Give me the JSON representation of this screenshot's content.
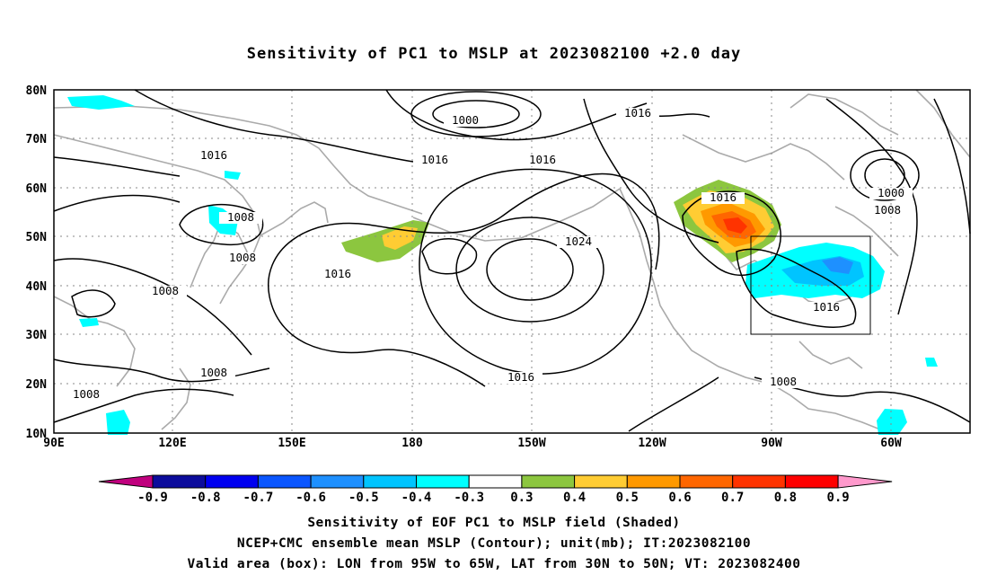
{
  "title": "Sensitivity of PC1 to MSLP at 2023082100 +2.0 day",
  "lat_labels": [
    "80N",
    "70N",
    "60N",
    "50N",
    "40N",
    "30N",
    "20N",
    "10N"
  ],
  "lon_labels": [
    "90E",
    "120E",
    "150E",
    "180",
    "150W",
    "120W",
    "90W",
    "60W"
  ],
  "contour_labels": [
    "1000",
    "1016",
    "1016",
    "1016",
    "1016",
    "1008",
    "1008",
    "1016",
    "1008",
    "1024",
    "1016",
    "1000",
    "1008",
    "1016",
    "1016",
    "1008",
    "1008",
    "1008"
  ],
  "colorbar": {
    "tick_labels": [
      "-0.9",
      "-0.8",
      "-0.7",
      "-0.6",
      "-0.5",
      "-0.4",
      "-0.3",
      "0.3",
      "0.4",
      "0.5",
      "0.6",
      "0.7",
      "0.8",
      "0.9"
    ],
    "colors": [
      "#c0007e",
      "#0c0c9c",
      "#0000f0",
      "#0a56ff",
      "#1e90ff",
      "#00c4ff",
      "#00ffff",
      "#ffffff",
      "#8cc63f",
      "#ffcc33",
      "#ff9900",
      "#ff6600",
      "#ff3300",
      "#ff0000",
      "#ff99cc"
    ]
  },
  "box": {
    "lon_from": "95W",
    "lon_to": "65W",
    "lat_from": "30N",
    "lat_to": "50N"
  },
  "captions": [
    "Sensitivity of EOF PC1 to MSLP field (Shaded)",
    "NCEP+CMC ensemble mean MSLP (Contour); unit(mb); IT:2023082100",
    "Valid area (box): LON from 95W to 65W, LAT from 30N to 50N; VT: 2023082400"
  ]
}
